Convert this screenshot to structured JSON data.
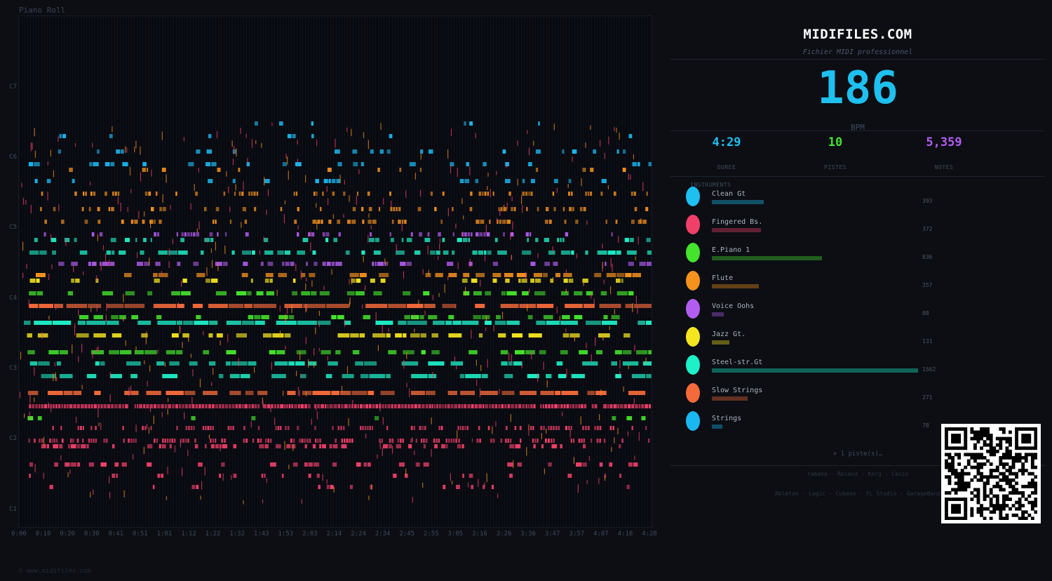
{
  "roll": {
    "title": "Piano Roll",
    "octave_labels": [
      "C7",
      "C6",
      "C5",
      "C4",
      "C3",
      "C2",
      "C1"
    ],
    "time_labels": [
      "0:00",
      "0:10",
      "0:20",
      "0:30",
      "0:41",
      "0:51",
      "1:01",
      "1:12",
      "1:22",
      "1:32",
      "1:43",
      "1:53",
      "2:03",
      "2:14",
      "2:24",
      "2:34",
      "2:45",
      "2:55",
      "3:05",
      "3:16",
      "3:26",
      "3:36",
      "3:47",
      "3:57",
      "4:07",
      "4:18",
      "4:28"
    ]
  },
  "sidebar": {
    "brand": "MIDIFILES.COM",
    "subtitle": "Fichier MIDI professionnel",
    "bpm": "186",
    "bpm_label": "BPM",
    "stats": [
      {
        "value": "4:29",
        "label": "DUREE",
        "color": "#1ec0f0"
      },
      {
        "value": "10",
        "label": "PISTES",
        "color": "#44e32c"
      },
      {
        "value": "5,359",
        "label": "NOTES",
        "color": "#b35df0"
      }
    ],
    "instruments_heading": "INSTRUMENTS",
    "instruments": [
      {
        "name": "Clean Gt",
        "count": "393",
        "notes": 393,
        "color": "#1ec0f0"
      },
      {
        "name": "Fingered Bs.",
        "count": "372",
        "notes": 372,
        "color": "#f0406a"
      },
      {
        "name": "E.Piano 1",
        "count": "836",
        "notes": 836,
        "color": "#44e32c"
      },
      {
        "name": "Flute",
        "count": "357",
        "notes": 357,
        "color": "#f5921e"
      },
      {
        "name": "Voice Oohs",
        "count": "88",
        "notes": 88,
        "color": "#b35df0"
      },
      {
        "name": "Jazz Gt.",
        "count": "131",
        "notes": 131,
        "color": "#f5e51e"
      },
      {
        "name": "Steel-str.Gt",
        "count": "1562",
        "notes": 1562,
        "color": "#1ef0c8"
      },
      {
        "name": "Slow Strings",
        "count": "271",
        "notes": 271,
        "color": "#f56a3a"
      },
      {
        "name": "Strings",
        "count": "78",
        "notes": 78,
        "color": "#1ab8f0"
      }
    ],
    "more_tracks": "+ 1 piste(s)…",
    "hardware": "Yamaha · Roland · Korg · Casio",
    "software": "Ableton · Logic · Cubase · FL Studio · GarageBand"
  },
  "footer": {
    "copyright": "© www.midifiles.com"
  }
}
